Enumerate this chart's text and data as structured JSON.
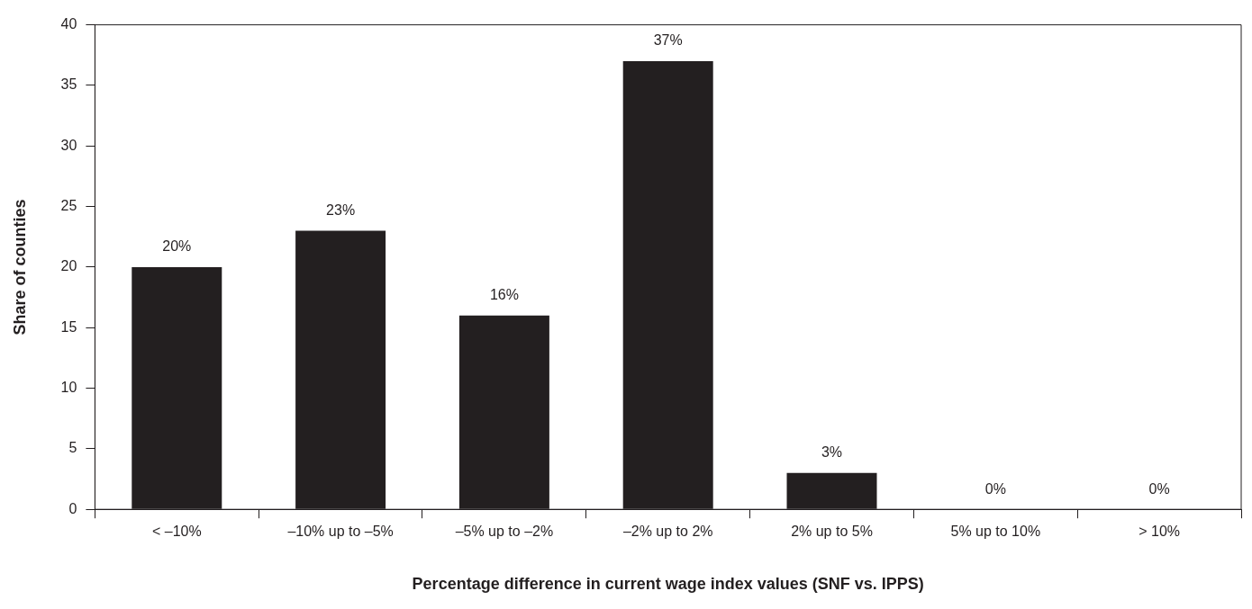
{
  "chart_data": {
    "type": "bar",
    "xlabel": "Percentage difference in current wage index values (SNF vs. IPPS)",
    "ylabel": "Share of counties",
    "categories": [
      "< –10%",
      "–10% up to –5%",
      "–5% up to –2%",
      "–2% up to 2%",
      "2% up to 5%",
      "5% up to 10%",
      "> 10%"
    ],
    "values": [
      20,
      23,
      16,
      37,
      3,
      0,
      0
    ],
    "value_labels": [
      "20%",
      "23%",
      "16%",
      "37%",
      "3%",
      "0%",
      "0%"
    ],
    "color": "#231f20",
    "ylim": [
      0,
      40
    ],
    "yticks": [
      0,
      5,
      10,
      15,
      20,
      25,
      30,
      35,
      40
    ],
    "grid": false,
    "legend": false
  }
}
